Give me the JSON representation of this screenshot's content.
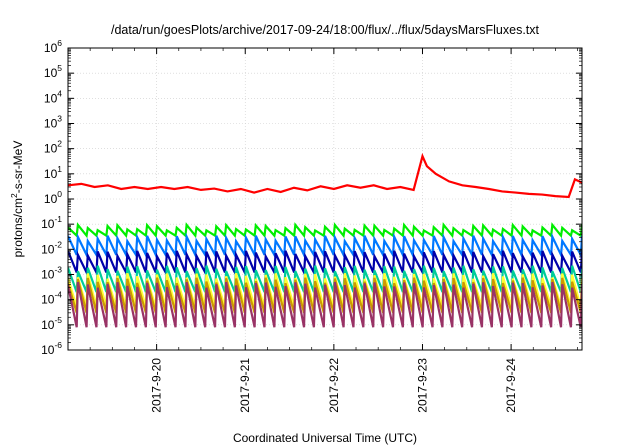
{
  "chart_data": {
    "type": "line",
    "title": "/data/run/goesPlots/archive/2017-09-24/18:00/flux/../flux/5daysMarsFluxes.txt",
    "xlabel": "Coordinated Universal Time (UTC)",
    "ylabel_parts": {
      "pre": "protons/cm",
      "sup": "2",
      "post": "-s-sr-MeV"
    },
    "y_scale": "log",
    "ylim_exp": [
      -6,
      6
    ],
    "y_ticks": [
      {
        "base": "10",
        "exp": "6"
      },
      {
        "base": "10",
        "exp": "5"
      },
      {
        "base": "10",
        "exp": "4"
      },
      {
        "base": "10",
        "exp": "3"
      },
      {
        "base": "10",
        "exp": "2"
      },
      {
        "base": "10",
        "exp": "1"
      },
      {
        "base": "10",
        "exp": "0"
      },
      {
        "base": "10",
        "exp": "-1"
      },
      {
        "base": "10",
        "exp": "-2"
      },
      {
        "base": "10",
        "exp": "-3"
      },
      {
        "base": "10",
        "exp": "-4"
      },
      {
        "base": "10",
        "exp": "-5"
      },
      {
        "base": "10",
        "exp": "-6"
      }
    ],
    "xlim_days": [
      0,
      5.8
    ],
    "x_ticks": [
      {
        "label": "2017-9-20",
        "day": 1
      },
      {
        "label": "2017-9-21",
        "day": 2
      },
      {
        "label": "2017-9-22",
        "day": 3
      },
      {
        "label": "2017-9-23",
        "day": 4
      },
      {
        "label": "2017-9-24",
        "day": 5
      }
    ],
    "grid": true,
    "red_series": {
      "color": "#ff0000",
      "points": [
        [
          0.0,
          3.5
        ],
        [
          0.15,
          4.0
        ],
        [
          0.3,
          3.0
        ],
        [
          0.45,
          3.5
        ],
        [
          0.6,
          2.5
        ],
        [
          0.75,
          3.0
        ],
        [
          0.9,
          2.5
        ],
        [
          1.05,
          3.0
        ],
        [
          1.2,
          2.5
        ],
        [
          1.35,
          3.0
        ],
        [
          1.5,
          2.3
        ],
        [
          1.65,
          2.6
        ],
        [
          1.8,
          2.0
        ],
        [
          1.95,
          2.5
        ],
        [
          2.1,
          1.8
        ],
        [
          2.25,
          2.5
        ],
        [
          2.4,
          1.9
        ],
        [
          2.55,
          2.8
        ],
        [
          2.7,
          2.2
        ],
        [
          2.85,
          3.2
        ],
        [
          3.0,
          2.5
        ],
        [
          3.15,
          3.5
        ],
        [
          3.3,
          2.8
        ],
        [
          3.45,
          3.5
        ],
        [
          3.6,
          2.5
        ],
        [
          3.75,
          3.0
        ],
        [
          3.9,
          2.3
        ],
        [
          4.0,
          50
        ],
        [
          4.05,
          20
        ],
        [
          4.15,
          10
        ],
        [
          4.3,
          5.0
        ],
        [
          4.45,
          3.5
        ],
        [
          4.6,
          3.0
        ],
        [
          4.75,
          2.5
        ],
        [
          4.9,
          2.0
        ],
        [
          5.05,
          1.8
        ],
        [
          5.2,
          1.6
        ],
        [
          5.35,
          1.5
        ],
        [
          5.5,
          1.3
        ],
        [
          5.65,
          1.2
        ],
        [
          5.72,
          6.0
        ],
        [
          5.8,
          4.5
        ]
      ]
    },
    "sawtooth_series": [
      {
        "color": "#00ee00",
        "base": 0.035,
        "peak": 0.075
      },
      {
        "color": "#0077ff",
        "base": 0.006,
        "peak": 0.028
      },
      {
        "color": "#0000aa",
        "base": 0.0012,
        "peak": 0.007
      },
      {
        "color": "#00cc99",
        "base": 0.0002,
        "peak": 0.0018
      },
      {
        "color": "#ffff33",
        "base": 5e-05,
        "peak": 0.0009
      },
      {
        "color": "#cc9900",
        "base": 3e-05,
        "peak": 0.0006
      },
      {
        "color": "#993366",
        "base": 8e-06,
        "peak": 0.0004
      }
    ],
    "sawtooth_teeth_per_day": 9
  }
}
